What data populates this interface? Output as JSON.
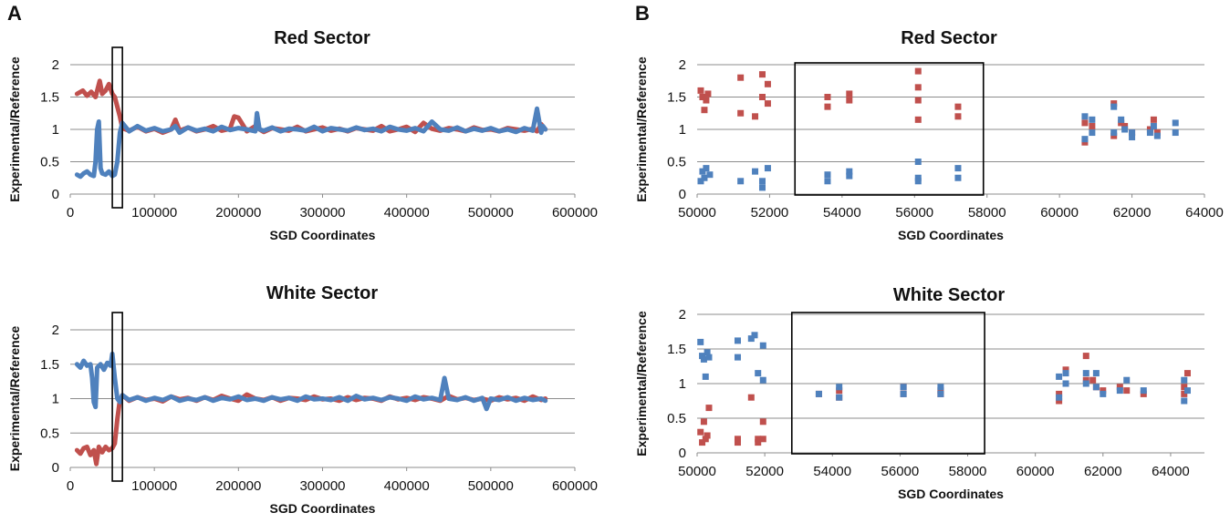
{
  "figure": {
    "panel_a_label": "A",
    "panel_b_label": "B",
    "colors": {
      "red": "#c0504d",
      "blue": "#4f81bd",
      "grid": "#8c8c8c",
      "box": "#000000"
    }
  },
  "chart_data": [
    {
      "id": "A_red",
      "type": "line",
      "title": "Red Sector",
      "xlabel": "SGD Coordinates",
      "ylabel": "Experimental/Reference",
      "xlim": [
        0,
        600000
      ],
      "ylim": [
        0,
        2
      ],
      "xticks": [
        0,
        100000,
        200000,
        300000,
        400000,
        500000,
        600000
      ],
      "yticks": [
        0,
        0.5,
        1,
        1.5,
        2
      ],
      "xtick_labels": [
        "0",
        "100000",
        "200000",
        "300000",
        "400000",
        "500000",
        "600000"
      ],
      "ytick_labels": [
        "0",
        "0.5",
        "1",
        "1.5",
        "2"
      ],
      "grid": true,
      "highlight_range": [
        50000,
        62000
      ],
      "series": [
        {
          "color": "red",
          "x": [
            8000,
            15000,
            20000,
            25000,
            30000,
            35000,
            38000,
            42000,
            46000,
            50000,
            53000,
            56000,
            59000,
            62000,
            70000,
            80000,
            90000,
            100000,
            110000,
            120000,
            125000,
            130000,
            140000,
            150000,
            160000,
            170000,
            180000,
            190000,
            195000,
            200000,
            210000,
            220000,
            225000,
            230000,
            240000,
            250000,
            260000,
            270000,
            280000,
            290000,
            300000,
            310000,
            320000,
            330000,
            340000,
            350000,
            360000,
            370000,
            380000,
            390000,
            400000,
            410000,
            420000,
            430000,
            440000,
            450000,
            460000,
            470000,
            480000,
            490000,
            500000,
            510000,
            520000,
            530000,
            540000,
            550000,
            555000,
            560000,
            565000
          ],
          "y": [
            1.55,
            1.6,
            1.52,
            1.58,
            1.5,
            1.75,
            1.55,
            1.6,
            1.7,
            1.55,
            1.5,
            1.35,
            1.2,
            1.02,
            0.98,
            1.04,
            0.97,
            1.01,
            0.95,
            1.0,
            1.15,
            0.98,
            1.03,
            0.97,
            1.0,
            1.05,
            0.98,
            1.01,
            1.2,
            1.18,
            0.97,
            1.05,
            1.0,
            0.96,
            1.02,
            1.0,
            0.98,
            1.04,
            0.97,
            1.0,
            1.03,
            0.98,
            1.01,
            0.97,
            1.02,
            1.0,
            0.98,
            1.05,
            0.97,
            1.0,
            1.04,
            0.96,
            1.1,
            1.01,
            0.98,
            1.02,
            1.0,
            0.97,
            1.03,
            0.99,
            1.0,
            0.97,
            1.02,
            1.0,
            0.98,
            1.01,
            0.97,
            1.08,
            1.0
          ]
        },
        {
          "color": "blue",
          "x": [
            8000,
            12000,
            16000,
            20000,
            24000,
            28000,
            30000,
            32000,
            34000,
            36000,
            38000,
            42000,
            46000,
            50000,
            53000,
            56000,
            59000,
            62000,
            70000,
            80000,
            90000,
            100000,
            110000,
            120000,
            125000,
            130000,
            140000,
            150000,
            160000,
            170000,
            180000,
            190000,
            200000,
            210000,
            220000,
            222000,
            225000,
            230000,
            240000,
            250000,
            260000,
            270000,
            280000,
            290000,
            300000,
            310000,
            320000,
            330000,
            340000,
            350000,
            360000,
            370000,
            380000,
            390000,
            400000,
            410000,
            420000,
            430000,
            440000,
            450000,
            460000,
            470000,
            480000,
            490000,
            500000,
            510000,
            520000,
            530000,
            540000,
            550000,
            555000,
            560000,
            562000,
            565000
          ],
          "y": [
            0.3,
            0.27,
            0.32,
            0.35,
            0.3,
            0.28,
            0.5,
            1.0,
            1.12,
            0.4,
            0.32,
            0.3,
            0.35,
            0.28,
            0.3,
            0.5,
            0.95,
            1.1,
            0.97,
            1.05,
            0.98,
            1.02,
            0.97,
            1.0,
            1.05,
            0.95,
            1.03,
            0.98,
            1.01,
            0.97,
            1.04,
            0.99,
            1.02,
            1.0,
            0.97,
            1.25,
            1.0,
            0.98,
            1.03,
            0.97,
            1.01,
            1.0,
            0.98,
            1.04,
            0.97,
            1.02,
            1.0,
            0.98,
            1.03,
            0.99,
            1.01,
            0.97,
            1.04,
            1.0,
            0.98,
            1.02,
            0.97,
            1.12,
            1.0,
            0.98,
            1.03,
            0.97,
            1.01,
            0.98,
            1.02,
            0.97,
            1.0,
            0.96,
            1.02,
            0.98,
            1.32,
            0.95,
            1.05,
            1.0
          ]
        }
      ]
    },
    {
      "id": "A_white",
      "type": "line",
      "title": "White Sector",
      "xlabel": "SGD Coordinates",
      "ylabel": "Experimental/Reference",
      "xlim": [
        0,
        600000
      ],
      "ylim": [
        0,
        2
      ],
      "xticks": [
        0,
        100000,
        200000,
        300000,
        400000,
        500000,
        600000
      ],
      "yticks": [
        0,
        0.5,
        1,
        1.5,
        2
      ],
      "xtick_labels": [
        "0",
        "100000",
        "200000",
        "300000",
        "400000",
        "500000",
        "600000"
      ],
      "ytick_labels": [
        "0",
        "0.5",
        "1",
        "1.5",
        "2"
      ],
      "grid": true,
      "highlight_range": [
        50000,
        62000
      ],
      "series": [
        {
          "color": "red",
          "x": [
            8000,
            12000,
            16000,
            20000,
            24000,
            28000,
            31000,
            34000,
            38000,
            42000,
            46000,
            50000,
            53000,
            56000,
            59000,
            62000,
            70000,
            80000,
            90000,
            100000,
            110000,
            120000,
            130000,
            140000,
            150000,
            160000,
            170000,
            180000,
            190000,
            200000,
            210000,
            220000,
            230000,
            240000,
            250000,
            260000,
            270000,
            280000,
            290000,
            300000,
            310000,
            320000,
            330000,
            340000,
            350000,
            360000,
            370000,
            380000,
            390000,
            400000,
            410000,
            420000,
            430000,
            440000,
            450000,
            460000,
            470000,
            480000,
            490000,
            500000,
            510000,
            520000,
            530000,
            540000,
            550000,
            560000,
            565000
          ],
          "y": [
            0.25,
            0.2,
            0.28,
            0.3,
            0.18,
            0.25,
            0.05,
            0.3,
            0.22,
            0.3,
            0.25,
            0.28,
            0.35,
            0.7,
            0.98,
            1.05,
            0.97,
            1.02,
            0.98,
            1.0,
            0.96,
            1.03,
            0.99,
            1.01,
            0.97,
            1.02,
            0.98,
            1.04,
            1.0,
            0.97,
            1.06,
            1.0,
            0.98,
            1.02,
            0.97,
            1.01,
            1.0,
            0.98,
            1.03,
            0.99,
            1.0,
            0.97,
            1.02,
            0.98,
            1.01,
            1.0,
            0.97,
            1.03,
            0.99,
            1.01,
            0.98,
            1.02,
            1.0,
            0.97,
            1.04,
            0.99,
            1.01,
            0.98,
            1.0,
            0.97,
            1.02,
            0.99,
            1.01,
            0.97,
            1.03,
            0.98,
            1.0
          ]
        },
        {
          "color": "blue",
          "x": [
            8000,
            12000,
            16000,
            20000,
            24000,
            26000,
            28000,
            30000,
            32000,
            36000,
            40000,
            44000,
            48000,
            50000,
            53000,
            56000,
            59000,
            62000,
            70000,
            80000,
            90000,
            100000,
            110000,
            120000,
            130000,
            140000,
            150000,
            160000,
            170000,
            180000,
            190000,
            200000,
            210000,
            220000,
            230000,
            240000,
            250000,
            260000,
            270000,
            280000,
            290000,
            300000,
            310000,
            320000,
            330000,
            340000,
            350000,
            360000,
            370000,
            380000,
            390000,
            400000,
            410000,
            420000,
            430000,
            440000,
            445000,
            450000,
            460000,
            470000,
            480000,
            490000,
            495000,
            500000,
            510000,
            520000,
            530000,
            540000,
            550000,
            560000,
            565000
          ],
          "y": [
            1.5,
            1.45,
            1.55,
            1.48,
            1.5,
            1.3,
            0.95,
            0.88,
            1.45,
            1.5,
            1.42,
            1.52,
            1.48,
            1.65,
            1.3,
            1.0,
            0.95,
            1.05,
            0.98,
            1.02,
            0.97,
            1.01,
            0.98,
            1.03,
            0.97,
            1.0,
            0.98,
            1.02,
            0.97,
            1.01,
            0.99,
            1.03,
            0.98,
            1.0,
            0.97,
            1.02,
            0.99,
            1.01,
            0.97,
            1.03,
            0.99,
            1.0,
            0.98,
            1.02,
            0.97,
            1.04,
            0.99,
            1.01,
            0.98,
            1.02,
            1.0,
            0.97,
            1.03,
            0.99,
            1.01,
            0.98,
            1.3,
            1.0,
            0.98,
            1.02,
            0.97,
            1.01,
            0.85,
            1.0,
            0.98,
            1.02,
            0.97,
            1.01,
            0.98,
            1.0,
            0.97
          ]
        }
      ]
    },
    {
      "id": "B_red",
      "type": "scatter",
      "title": "Red Sector",
      "xlabel": "SGD Coordinates",
      "ylabel": "Experimental/Reference",
      "xlim": [
        50000,
        64000
      ],
      "ylim": [
        0,
        2
      ],
      "xticks": [
        50000,
        52000,
        54000,
        56000,
        58000,
        60000,
        62000,
        64000
      ],
      "yticks": [
        0,
        0.5,
        1,
        1.5,
        2
      ],
      "xtick_labels": [
        "50000",
        "52000",
        "54000",
        "56000",
        "58000",
        "60000",
        "62000",
        "64000"
      ],
      "ytick_labels": [
        "0",
        "0.5",
        "1",
        "1.5",
        "2"
      ],
      "grid": true,
      "highlight_range": [
        52700,
        57900
      ],
      "series": [
        {
          "color": "red",
          "x": [
            50100,
            50150,
            50200,
            50250,
            50300,
            51200,
            51200,
            51600,
            51800,
            51800,
            51950,
            51950,
            53600,
            53600,
            54200,
            54200,
            56100,
            56100,
            56100,
            56100,
            57200,
            57200,
            60700,
            60700,
            60900,
            61500,
            61500,
            61700,
            61800,
            62000,
            62500,
            62600,
            62700
          ],
          "y": [
            1.6,
            1.5,
            1.3,
            1.45,
            1.55,
            1.8,
            1.25,
            1.2,
            1.85,
            1.5,
            1.7,
            1.4,
            1.5,
            1.35,
            1.55,
            1.45,
            1.9,
            1.65,
            1.45,
            1.15,
            1.35,
            1.2,
            0.8,
            1.1,
            1.05,
            1.4,
            0.9,
            1.1,
            1.05,
            0.95,
            1.0,
            1.15,
            0.95
          ]
        },
        {
          "color": "blue",
          "x": [
            50100,
            50150,
            50200,
            50250,
            50350,
            51200,
            51600,
            51800,
            51800,
            51950,
            53600,
            53600,
            54200,
            54200,
            56100,
            56100,
            56100,
            57200,
            57200,
            60700,
            60700,
            60900,
            60900,
            61500,
            61500,
            61700,
            61800,
            62000,
            62000,
            62500,
            62600,
            62700,
            63200,
            63200
          ],
          "y": [
            0.2,
            0.35,
            0.25,
            0.4,
            0.3,
            0.2,
            0.35,
            0.2,
            0.1,
            0.4,
            0.3,
            0.2,
            0.35,
            0.28,
            0.5,
            0.25,
            0.2,
            0.4,
            0.25,
            1.2,
            0.85,
            1.15,
            0.95,
            1.35,
            0.95,
            1.15,
            1.0,
            0.95,
            0.88,
            0.95,
            1.05,
            0.9,
            1.1,
            0.95
          ]
        }
      ]
    },
    {
      "id": "B_white",
      "type": "scatter",
      "title": "White Sector",
      "xlabel": "SGD Coordinates",
      "ylabel": "Experimental/Reference",
      "xlim": [
        50000,
        65000
      ],
      "ylim": [
        0,
        2
      ],
      "xticks": [
        50000,
        52000,
        54000,
        56000,
        58000,
        60000,
        62000,
        64000
      ],
      "yticks": [
        0,
        0.5,
        1,
        1.5,
        2
      ],
      "xtick_labels": [
        "50000",
        "52000",
        "54000",
        "56000",
        "58000",
        "60000",
        "62000",
        "64000"
      ],
      "ytick_labels": [
        "0",
        "0.5",
        "1",
        "1.5",
        "2"
      ],
      "grid": true,
      "highlight_range": [
        52800,
        58500
      ],
      "series": [
        {
          "color": "red",
          "x": [
            50100,
            50150,
            50200,
            50250,
            50300,
            50350,
            51200,
            51200,
            51600,
            51800,
            51800,
            51950,
            51950,
            53600,
            54200,
            54200,
            56100,
            56100,
            57200,
            57200,
            60700,
            60700,
            60900,
            61500,
            61500,
            61700,
            61800,
            62000,
            62500,
            62700,
            63200,
            64400,
            64400,
            64500
          ],
          "y": [
            0.3,
            0.15,
            0.45,
            0.2,
            0.25,
            0.65,
            0.2,
            0.15,
            0.8,
            0.2,
            0.15,
            0.45,
            0.2,
            0.85,
            0.9,
            0.8,
            0.95,
            0.85,
            0.9,
            0.85,
            0.85,
            0.75,
            1.2,
            1.4,
            1.05,
            1.05,
            0.95,
            0.9,
            0.95,
            0.9,
            0.85,
            0.95,
            0.85,
            1.15
          ]
        },
        {
          "color": "blue",
          "x": [
            50100,
            50150,
            50200,
            50250,
            50300,
            50350,
            51200,
            51200,
            51600,
            51700,
            51800,
            51950,
            51950,
            53600,
            54200,
            54200,
            56100,
            56100,
            57200,
            57200,
            60700,
            60700,
            60900,
            60900,
            61500,
            61500,
            61800,
            61800,
            62000,
            62500,
            62700,
            63200,
            64400,
            64400,
            64500
          ],
          "y": [
            1.6,
            1.4,
            1.35,
            1.1,
            1.45,
            1.38,
            1.62,
            1.38,
            1.65,
            1.7,
            1.15,
            1.55,
            1.05,
            0.85,
            0.95,
            0.8,
            0.95,
            0.85,
            0.95,
            0.85,
            1.1,
            0.8,
            1.15,
            1.0,
            1.15,
            1.0,
            1.15,
            0.95,
            0.85,
            0.9,
            1.05,
            0.9,
            1.05,
            0.75,
            0.9
          ]
        }
      ]
    }
  ]
}
